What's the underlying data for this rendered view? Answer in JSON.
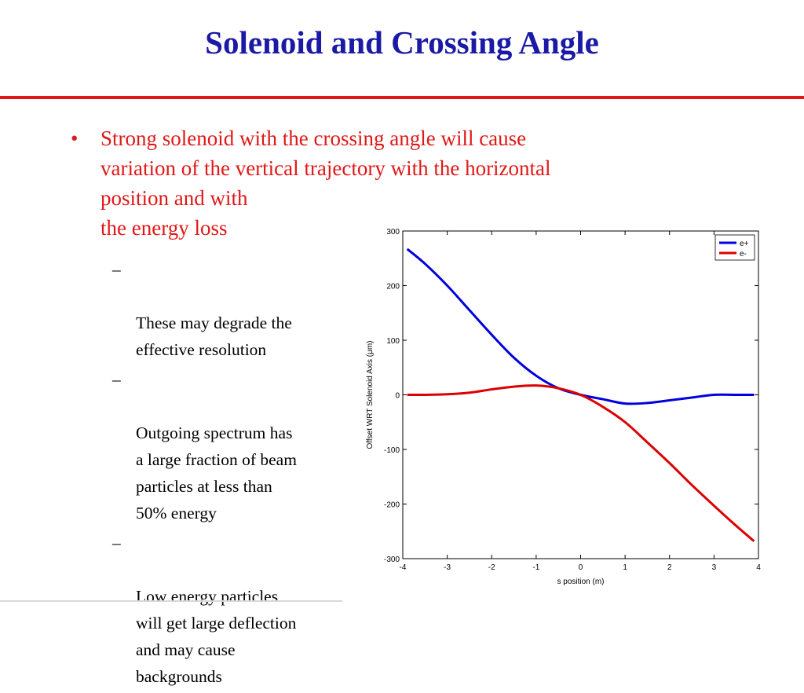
{
  "slide": {
    "title": "Solenoid and Crossing Angle",
    "bullet": {
      "marker": "•",
      "text": "Strong solenoid with the crossing angle will cause\nvariation of the vertical trajectory with the horizontal\nposition and with\nthe energy loss"
    },
    "sub_marker": "–",
    "sub_bullets": [
      "These may degrade the\neffective resolution",
      "Outgoing spectrum has\na large fraction of beam\nparticles at less than\n50% energy",
      "Low energy particles\nwill get large deflection\nand may cause\nbackgrounds"
    ],
    "colors": {
      "title": "#1a1aa6",
      "bullet": "#e01818",
      "rule": "#e01818"
    }
  },
  "chart_data": {
    "type": "line",
    "xlabel": "s position (m)",
    "ylabel": "Offset WRT Solenoid Axis (μm)",
    "xlim": [
      -4,
      4
    ],
    "ylim": [
      -300,
      300
    ],
    "xticks": [
      -4,
      -3,
      -2,
      -1,
      0,
      1,
      2,
      3,
      4
    ],
    "yticks": [
      300,
      200,
      100,
      0,
      -100,
      -200,
      -300
    ],
    "grid": false,
    "legend_position": "top-right",
    "series": [
      {
        "name": "e+",
        "color": "#0000dd",
        "x": [
          -3.9,
          -3.5,
          -3.0,
          -2.5,
          -2.0,
          -1.5,
          -1.0,
          -0.5,
          0,
          0.5,
          1.0,
          1.5,
          2.0,
          2.5,
          3.0,
          3.5,
          3.9
        ],
        "y": [
          267,
          240,
          200,
          155,
          110,
          68,
          35,
          12,
          0,
          -8,
          -16,
          -15,
          -10,
          -5,
          0,
          0,
          0
        ]
      },
      {
        "name": "e-",
        "color": "#dd0000",
        "x": [
          -3.9,
          -3.5,
          -3.0,
          -2.5,
          -2.0,
          -1.5,
          -1.0,
          -0.5,
          0,
          0.5,
          1.0,
          1.5,
          2.0,
          2.5,
          3.0,
          3.5,
          3.9
        ],
        "y": [
          0,
          0,
          1,
          4,
          10,
          15,
          17,
          12,
          0,
          -22,
          -50,
          -87,
          -125,
          -165,
          -203,
          -240,
          -268
        ]
      }
    ]
  }
}
